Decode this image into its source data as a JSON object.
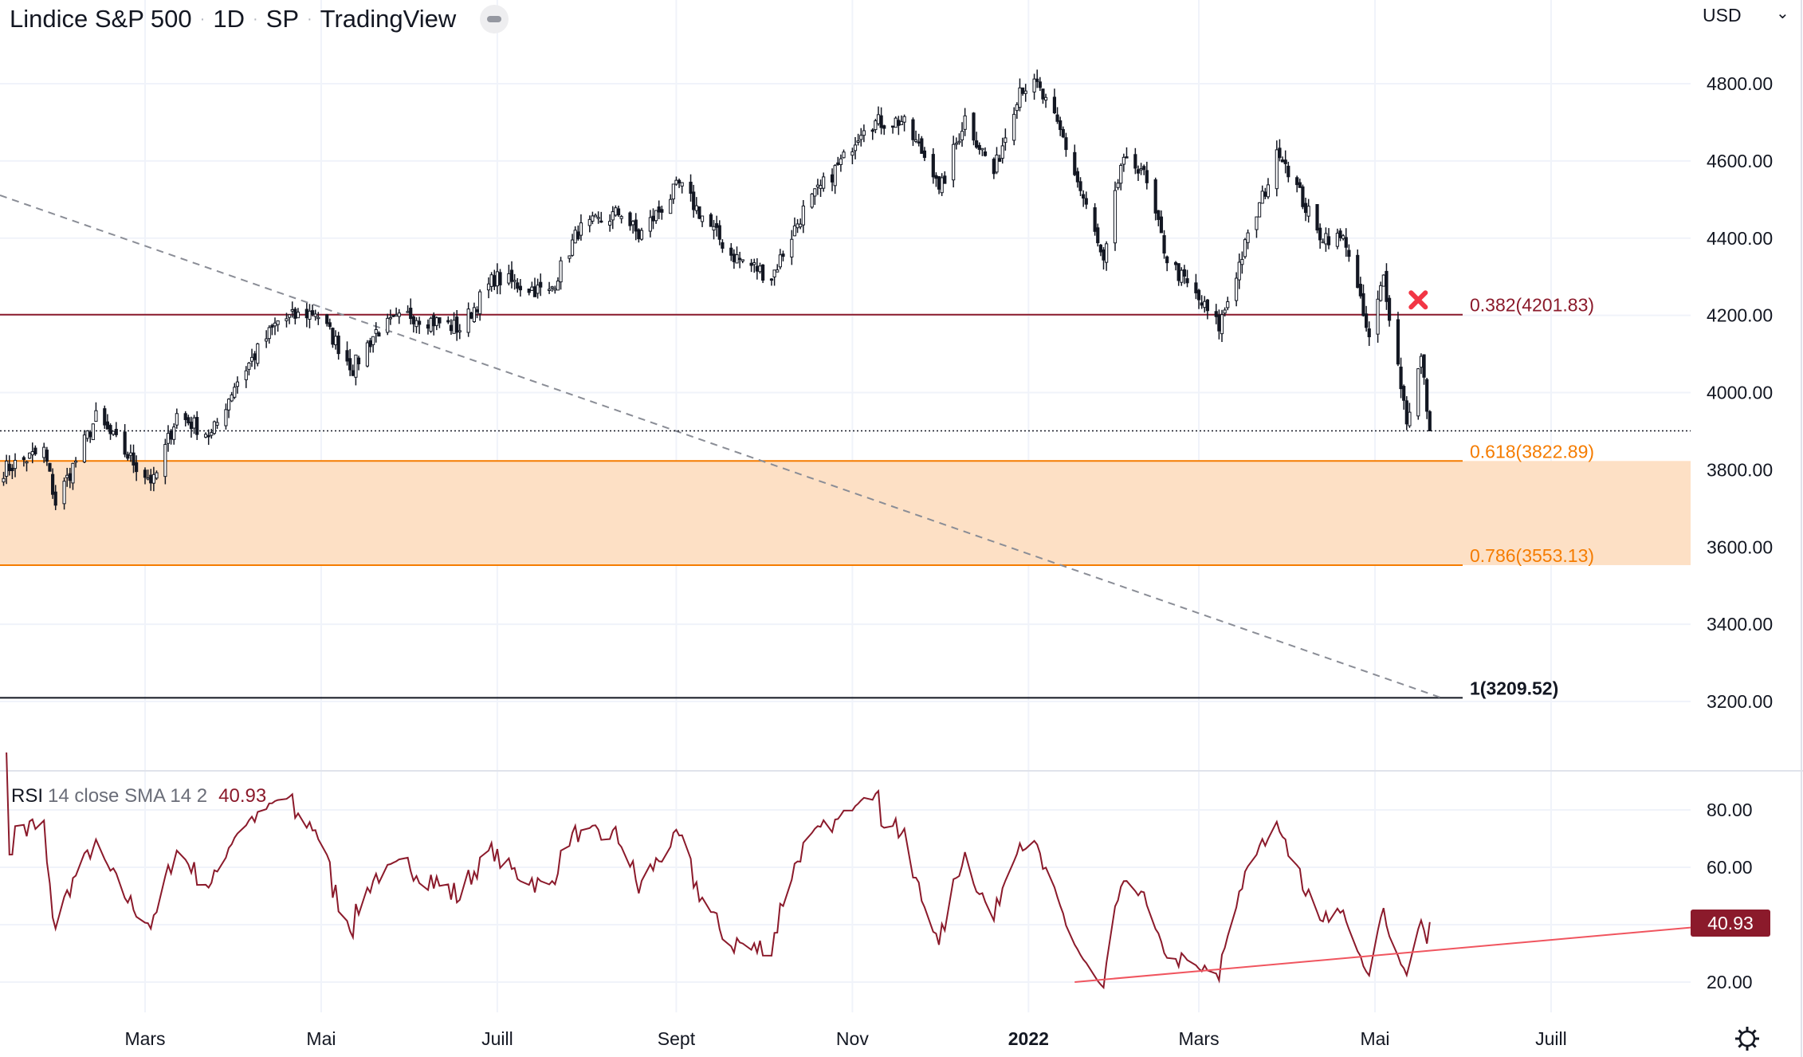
{
  "header": {
    "symbol": "Lindice S&P 500",
    "interval": "1D",
    "exchange": "SP",
    "source": "TradingView",
    "currency": "USD"
  },
  "colors": {
    "candle": "#131722",
    "fib382": "#8b1a2b",
    "fib618": "#f57c00",
    "zone": "#fde0c5",
    "rsi": "#8b1a2b",
    "rsi_trend": "#f0555f",
    "marker": "#f23645"
  },
  "chart_data": [
    {
      "type": "candlestick",
      "title": "Lindice S&P 500 · 1D · SP",
      "ylabel": "USD",
      "ylim": [
        3100,
        4900
      ],
      "y_ticks": [
        "4800.00",
        "4600.00",
        "4400.00",
        "4200.00",
        "4000.00",
        "3800.00",
        "3600.00",
        "3400.00",
        "3200.00"
      ],
      "y_tick_values": [
        4800,
        4600,
        4400,
        4200,
        4000,
        3800,
        3600,
        3400,
        3200
      ],
      "x_ticks": [
        {
          "label": "Mars",
          "date": "2021-03-01"
        },
        {
          "label": "Mai",
          "date": "2021-05-01"
        },
        {
          "label": "Juill",
          "date": "2021-07-01"
        },
        {
          "label": "Sept",
          "date": "2021-09-01"
        },
        {
          "label": "Nov",
          "date": "2021-11-01"
        },
        {
          "label": "2022",
          "date": "2022-01-01",
          "bold": true
        },
        {
          "label": "Mars",
          "date": "2022-03-01"
        },
        {
          "label": "Mai",
          "date": "2022-05-01"
        },
        {
          "label": "Juill",
          "date": "2022-07-01"
        }
      ],
      "close_keypoints": [
        [
          "2021-01-11",
          3800
        ],
        [
          "2021-01-25",
          3850
        ],
        [
          "2021-01-29",
          3714
        ],
        [
          "2021-02-12",
          3934
        ],
        [
          "2021-02-26",
          3811
        ],
        [
          "2021-03-04",
          3768
        ],
        [
          "2021-03-12",
          3943
        ],
        [
          "2021-03-24",
          3889
        ],
        [
          "2021-04-01",
          4020
        ],
        [
          "2021-04-16",
          4185
        ],
        [
          "2021-04-29",
          4211
        ],
        [
          "2021-05-12",
          4063
        ],
        [
          "2021-05-20",
          4159
        ],
        [
          "2021-06-01",
          4202
        ],
        [
          "2021-06-18",
          4166
        ],
        [
          "2021-06-30",
          4297
        ],
        [
          "2021-07-19",
          4258
        ],
        [
          "2021-07-29",
          4419
        ],
        [
          "2021-08-13",
          4468
        ],
        [
          "2021-08-19",
          4405
        ],
        [
          "2021-09-02",
          4537
        ],
        [
          "2021-09-20",
          4358
        ],
        [
          "2021-10-04",
          4300
        ],
        [
          "2021-10-15",
          4471
        ],
        [
          "2021-10-29",
          4605
        ],
        [
          "2021-11-05",
          4697
        ],
        [
          "2021-11-18",
          4704
        ],
        [
          "2021-11-30",
          4567
        ],
        [
          "2021-12-01",
          4513
        ],
        [
          "2021-12-10",
          4712
        ],
        [
          "2021-12-20",
          4568
        ],
        [
          "2021-12-29",
          4793
        ],
        [
          "2022-01-04",
          4793
        ],
        [
          "2022-01-13",
          4659
        ],
        [
          "2022-01-24",
          4410
        ],
        [
          "2022-01-27",
          4326
        ],
        [
          "2022-02-02",
          4589
        ],
        [
          "2022-02-09",
          4587
        ],
        [
          "2022-02-18",
          4348
        ],
        [
          "2022-02-24",
          4288
        ],
        [
          "2022-03-08",
          4170
        ],
        [
          "2022-03-16",
          4357
        ],
        [
          "2022-03-29",
          4631
        ],
        [
          "2022-04-11",
          4412
        ],
        [
          "2022-04-21",
          4393
        ],
        [
          "2022-04-29",
          4132
        ],
        [
          "2022-05-04",
          4300
        ],
        [
          "2022-05-12",
          3930
        ],
        [
          "2022-05-17",
          4088
        ],
        [
          "2022-05-20",
          3901
        ]
      ],
      "last_price": 3901,
      "fib_levels": [
        {
          "ratio": "0.382",
          "value": 4201.83,
          "label": "0.382(4201.83)"
        },
        {
          "ratio": "0.618",
          "value": 3822.89,
          "label": "0.618(3822.89)"
        },
        {
          "ratio": "0.786",
          "value": 3553.13,
          "label": "0.786(3553.13)"
        },
        {
          "ratio": "1",
          "value": 3209.52,
          "label": "1(3209.52)"
        }
      ],
      "trendline": {
        "start": [
          "2021-01-11",
          4500
        ],
        "end": [
          "2022-05-24",
          3209.52
        ],
        "style": "dashed"
      },
      "marker": {
        "type": "x",
        "date": "2022-05-16",
        "value": 4240
      }
    },
    {
      "type": "line",
      "title": "RSI",
      "params": "14 close SMA 14 2",
      "last_value": "40.93",
      "ylim": [
        10,
        90
      ],
      "y_ticks": [
        "80.00",
        "60.00",
        "20.00"
      ],
      "y_tick_values": [
        80,
        60,
        20
      ],
      "trendline": {
        "start": [
          "2022-01-17",
          20
        ],
        "end": [
          "2022-07-31",
          39
        ]
      }
    }
  ]
}
